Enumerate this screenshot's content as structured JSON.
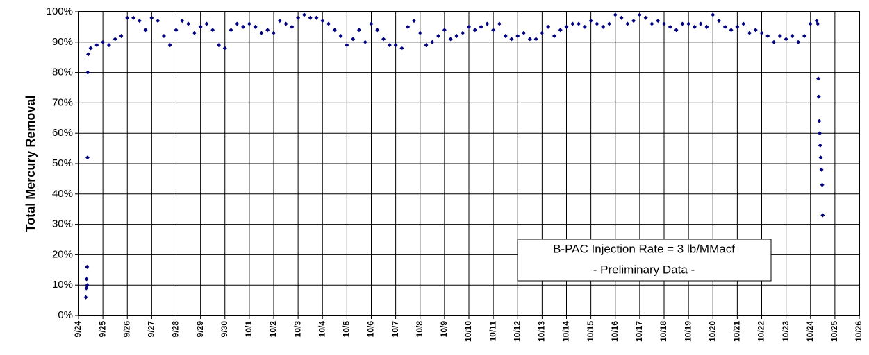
{
  "chart_data": {
    "type": "scatter",
    "ylabel": "Total Mercury Removal",
    "annotation": [
      "B-PAC Injection Rate = 3 lb/MMacf",
      "- Preliminary Data -"
    ],
    "color": "#000080",
    "grid": true,
    "xlim": [
      0,
      32
    ],
    "xticks": [
      {
        "value": 0,
        "label": "9/24"
      },
      {
        "value": 1,
        "label": "9/25"
      },
      {
        "value": 2,
        "label": "9/26"
      },
      {
        "value": 3,
        "label": "9/27"
      },
      {
        "value": 4,
        "label": "9/28"
      },
      {
        "value": 5,
        "label": "9/29"
      },
      {
        "value": 6,
        "label": "9/30"
      },
      {
        "value": 7,
        "label": "10/1"
      },
      {
        "value": 8,
        "label": "10/2"
      },
      {
        "value": 9,
        "label": "10/3"
      },
      {
        "value": 10,
        "label": "10/4"
      },
      {
        "value": 11,
        "label": "10/5"
      },
      {
        "value": 12,
        "label": "10/6"
      },
      {
        "value": 13,
        "label": "10/7"
      },
      {
        "value": 14,
        "label": "10/8"
      },
      {
        "value": 15,
        "label": "10/9"
      },
      {
        "value": 16,
        "label": "10/10"
      },
      {
        "value": 17,
        "label": "10/11"
      },
      {
        "value": 18,
        "label": "10/12"
      },
      {
        "value": 19,
        "label": "10/13"
      },
      {
        "value": 20,
        "label": "10/14"
      },
      {
        "value": 21,
        "label": "10/15"
      },
      {
        "value": 22,
        "label": "10/16"
      },
      {
        "value": 23,
        "label": "10/17"
      },
      {
        "value": 24,
        "label": "10/18"
      },
      {
        "value": 25,
        "label": "10/19"
      },
      {
        "value": 26,
        "label": "10/20"
      },
      {
        "value": 27,
        "label": "10/21"
      },
      {
        "value": 28,
        "label": "10/22"
      },
      {
        "value": 29,
        "label": "10/23"
      },
      {
        "value": 30,
        "label": "10/24"
      },
      {
        "value": 31,
        "label": "10/25"
      },
      {
        "value": 32,
        "label": "10/26"
      }
    ],
    "ylim": [
      0,
      100
    ],
    "yticks": [
      {
        "value": 0,
        "label": "0%"
      },
      {
        "value": 10,
        "label": "10%"
      },
      {
        "value": 20,
        "label": "20%"
      },
      {
        "value": 30,
        "label": "30%"
      },
      {
        "value": 40,
        "label": "40%"
      },
      {
        "value": 50,
        "label": "50%"
      },
      {
        "value": 60,
        "label": "60%"
      },
      {
        "value": 70,
        "label": "70%"
      },
      {
        "value": 80,
        "label": "80%"
      },
      {
        "value": 90,
        "label": "90%"
      },
      {
        "value": 100,
        "label": "100%"
      }
    ],
    "x": [
      0.3,
      0.32,
      0.33,
      0.35,
      0.36,
      0.37,
      0.38,
      0.4,
      0.5,
      0.75,
      1,
      1.25,
      1.5,
      1.75,
      2,
      2.25,
      2.5,
      2.75,
      3,
      3.25,
      3.5,
      3.75,
      4,
      4.25,
      4.5,
      4.75,
      5,
      5.25,
      5.5,
      5.75,
      6,
      6.25,
      6.5,
      6.75,
      7,
      7.25,
      7.5,
      7.75,
      8,
      8.25,
      8.5,
      8.75,
      9,
      9.25,
      9.5,
      9.75,
      10,
      10.25,
      10.5,
      10.75,
      11,
      11.25,
      11.5,
      11.75,
      12,
      12.25,
      12.5,
      12.75,
      13,
      13.25,
      13.5,
      13.75,
      14,
      14.25,
      14.5,
      14.75,
      15,
      15.25,
      15.5,
      15.75,
      16,
      16.25,
      16.5,
      16.75,
      17,
      17.25,
      17.5,
      17.75,
      18,
      18.25,
      18.5,
      18.75,
      19,
      19.25,
      19.5,
      19.75,
      20,
      20.25,
      20.5,
      20.75,
      21,
      21.25,
      21.5,
      21.75,
      22,
      22.25,
      22.5,
      22.75,
      23,
      23.25,
      23.5,
      23.75,
      24,
      24.25,
      24.5,
      24.75,
      25,
      25.25,
      25.5,
      25.75,
      26,
      26.25,
      26.5,
      26.75,
      27,
      27.25,
      27.5,
      27.75,
      28,
      28.25,
      28.5,
      28.75,
      29,
      29.25,
      29.5,
      29.75,
      30,
      30.25,
      30.3,
      30.32,
      30.34,
      30.36,
      30.38,
      30.4,
      30.42,
      30.45,
      30.48,
      30.5
    ],
    "values": [
      6,
      9,
      12,
      16,
      10,
      52,
      80,
      86,
      88,
      89,
      90,
      89,
      91,
      92,
      98,
      98,
      97,
      94,
      98,
      97,
      92,
      89,
      94,
      97,
      96,
      93,
      95,
      96,
      94,
      89,
      88,
      94,
      96,
      95,
      96,
      95,
      93,
      94,
      93,
      97,
      96,
      95,
      98,
      99,
      98,
      98,
      97,
      96,
      94,
      92,
      89,
      91,
      94,
      90,
      96,
      94,
      91,
      89,
      89,
      88,
      95,
      97,
      93,
      89,
      90,
      92,
      94,
      91,
      92,
      93,
      95,
      94,
      95,
      96,
      94,
      96,
      92,
      91,
      92,
      93,
      91,
      91,
      93,
      95,
      92,
      94,
      95,
      96,
      96,
      95,
      97,
      96,
      95,
      96,
      99,
      98,
      96,
      97,
      99,
      98,
      96,
      97,
      96,
      95,
      94,
      96,
      96,
      95,
      96,
      95,
      99,
      97,
      95,
      94,
      95,
      96,
      93,
      94,
      93,
      92,
      90,
      92,
      91,
      92,
      90,
      92,
      96,
      97,
      96,
      78,
      72,
      64,
      60,
      56,
      52,
      48,
      43,
      33
    ]
  }
}
